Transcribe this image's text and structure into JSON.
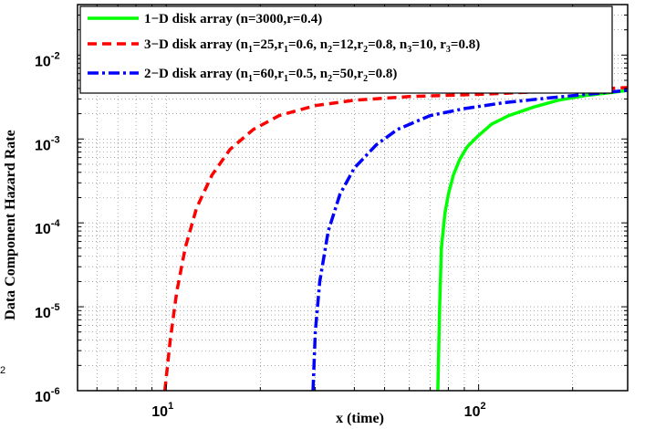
{
  "chart_data": {
    "type": "line",
    "xlabel": "x (time)",
    "ylabel": "Data Component Hazard Rate",
    "x_scale": "log",
    "y_scale": "log",
    "xlim": [
      5.2,
      300
    ],
    "ylim": [
      1e-06,
      0.04
    ],
    "grid": true,
    "legend_position": "top",
    "x_ticks": [
      {
        "base": "10",
        "exp": "1",
        "value": 10
      },
      {
        "base": "10",
        "exp": "2",
        "value": 100
      }
    ],
    "y_ticks": [
      {
        "base": "10",
        "exp": "-2",
        "value": 0.01
      },
      {
        "base": "10",
        "exp": "-3",
        "value": 0.001
      },
      {
        "base": "10",
        "exp": "-4",
        "value": 0.0001
      },
      {
        "base": "10",
        "exp": "-5",
        "value": 1e-05
      },
      {
        "base": "10",
        "exp": "-6",
        "value": 1e-06
      }
    ],
    "stray_tick_label": "2",
    "series": [
      {
        "legend": [
          {
            "t": "1−D disk array (n=3000,r=0.4)"
          }
        ],
        "color": "#00ff00",
        "style": "solid",
        "x": [
          74,
          75,
          76,
          78,
          80,
          83,
          87,
          92,
          100,
          110,
          125,
          150,
          180,
          220,
          270,
          300
        ],
        "y": [
          1e-06,
          1e-05,
          5e-05,
          0.00013,
          0.00022,
          0.00037,
          0.00057,
          0.00081,
          0.0011,
          0.0015,
          0.0019,
          0.0024,
          0.0029,
          0.0033,
          0.0036,
          0.0038
        ]
      },
      {
        "legend": [
          {
            "t": "3−D disk array (n"
          },
          {
            "t": "1",
            "sub": true
          },
          {
            "t": "=25,r"
          },
          {
            "t": "1",
            "sub": true
          },
          {
            "t": "=0.6, n"
          },
          {
            "t": "2",
            "sub": true
          },
          {
            "t": "=12,r"
          },
          {
            "t": "2",
            "sub": true
          },
          {
            "t": "=0.8, n"
          },
          {
            "t": "3",
            "sub": true
          },
          {
            "t": "=10, r"
          },
          {
            "t": "3",
            "sub": true
          },
          {
            "t": "=0.8)"
          }
        ],
        "color": "#ff0000",
        "style": "dashed",
        "x": [
          9.9,
          10.3,
          10.8,
          11.5,
          12.5,
          14,
          16,
          19,
          23,
          30,
          40,
          60,
          100,
          200,
          300
        ],
        "y": [
          1e-06,
          4e-06,
          1.5e-05,
          5e-05,
          0.00015,
          0.00037,
          0.00075,
          0.0013,
          0.0019,
          0.0025,
          0.0029,
          0.0032,
          0.0034,
          0.0038,
          0.0041
        ]
      },
      {
        "legend": [
          {
            "t": "2−D disk array (n"
          },
          {
            "t": "1",
            "sub": true
          },
          {
            "t": "=60,r"
          },
          {
            "t": "1",
            "sub": true
          },
          {
            "t": "=0.5, n"
          },
          {
            "t": "2",
            "sub": true
          },
          {
            "t": "=50,r"
          },
          {
            "t": "2",
            "sub": true
          },
          {
            "t": "=0.8)"
          }
        ],
        "color": "#0000ff",
        "style": "dashdot",
        "x": [
          29.5,
          30,
          31,
          33,
          36,
          40,
          47,
          55,
          70,
          90,
          120,
          170,
          240,
          300
        ],
        "y": [
          1e-06,
          5e-06,
          2e-05,
          8e-05,
          0.00022,
          0.00045,
          0.00085,
          0.0013,
          0.0019,
          0.0023,
          0.0027,
          0.0031,
          0.0035,
          0.0038
        ]
      }
    ]
  }
}
